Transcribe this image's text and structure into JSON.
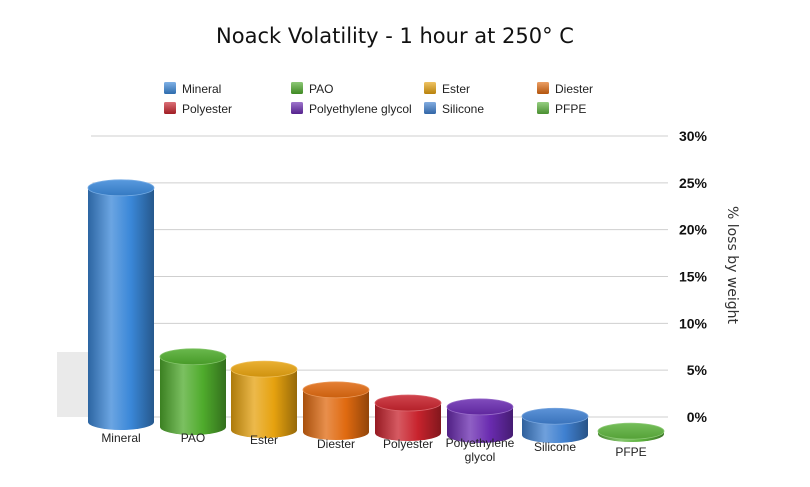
{
  "chart_data": {
    "type": "bar",
    "title": "Noack Volatility - 1 hour at 250° C",
    "xlabel": "",
    "ylabel": "% loss by weight",
    "ylim": [
      0,
      30
    ],
    "yticks": [
      "0%",
      "5%",
      "10%",
      "15%",
      "20%",
      "25%",
      "30%"
    ],
    "grid": true,
    "legend_position": "top",
    "categories": [
      "Mineral",
      "PAO",
      "Ester",
      "Diester",
      "Polyester",
      "Polyethylene glycol",
      "Silicone",
      "PFPE"
    ],
    "values": [
      25,
      7.5,
      6.5,
      4.5,
      3.2,
      3.0,
      2.0,
      0.3
    ],
    "series": [
      {
        "name": "Mineral",
        "color": "#3a87d8"
      },
      {
        "name": "PAO",
        "color": "#4fab2c"
      },
      {
        "name": "Ester",
        "color": "#e6a20f"
      },
      {
        "name": "Diester",
        "color": "#e06a10"
      },
      {
        "name": "Polyester",
        "color": "#c8232d"
      },
      {
        "name": "Polyethylene glycol",
        "color": "#6a2bb0"
      },
      {
        "name": "Silicone",
        "color": "#3f80d0"
      },
      {
        "name": "PFPE",
        "color": "#5db33d"
      }
    ]
  }
}
